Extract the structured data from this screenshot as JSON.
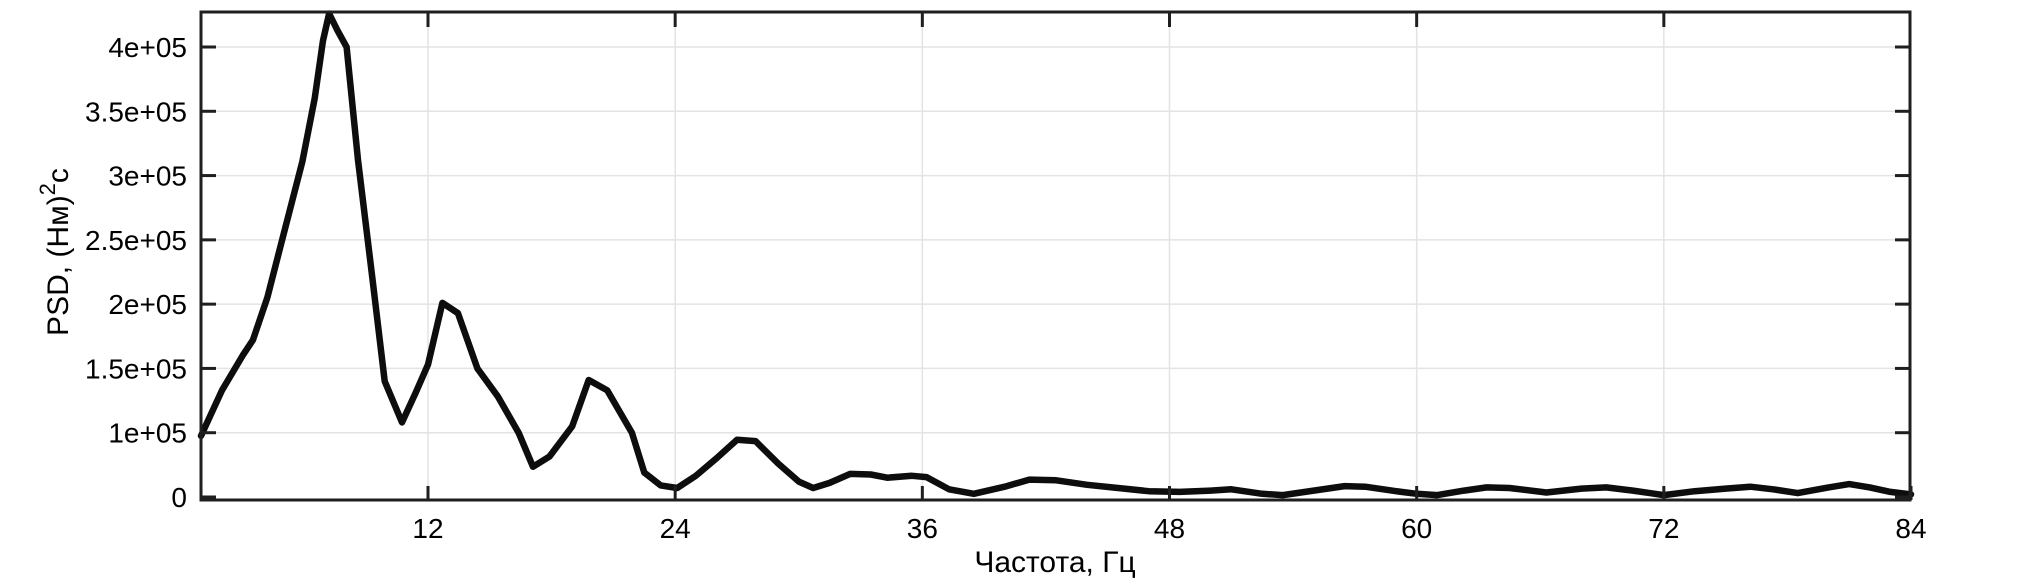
{
  "chart_data": {
    "type": "line",
    "title": "",
    "xlabel": "Частота, Гц",
    "ylabel": "PSD, (Нм)2с",
    "ylabel_parts": {
      "prefix": "PSD, (Нм)",
      "sup": "2",
      "suffix": "с"
    },
    "grid": true,
    "legend": "none",
    "background": "#ffffff",
    "line_color": "#0d0d0d",
    "grid_color": "#e3e3e3",
    "frame_color": "#1f1f1f",
    "text_color": "#000000",
    "xlim": [
      1,
      84
    ],
    "ylim": [
      0,
      427000
    ],
    "y_axis_style": "ticks equally spaced in pixels for values 0, 1e+05 then every 0.5e+05",
    "x_ticks": [
      {
        "value": 12,
        "label": "12"
      },
      {
        "value": 24,
        "label": "24"
      },
      {
        "value": 36,
        "label": "36"
      },
      {
        "value": 48,
        "label": "48"
      },
      {
        "value": 60,
        "label": "60"
      },
      {
        "value": 72,
        "label": "72"
      },
      {
        "value": 84,
        "label": "84"
      }
    ],
    "y_ticks": [
      {
        "value": 0,
        "label": "0"
      },
      {
        "value": 100000,
        "label": "1e+05"
      },
      {
        "value": 150000,
        "label": "1.5e+05"
      },
      {
        "value": 200000,
        "label": "2e+05"
      },
      {
        "value": 250000,
        "label": "2.5e+05"
      },
      {
        "value": 300000,
        "label": "3e+05"
      },
      {
        "value": 350000,
        "label": "3.5e+05"
      },
      {
        "value": 400000,
        "label": "4e+05"
      }
    ],
    "series": [
      {
        "name": "PSD",
        "color": "#0d0d0d",
        "points": [
          [
            0.98,
            95000
          ],
          [
            2.0,
            133000
          ],
          [
            3.0,
            160000
          ],
          [
            3.5,
            172000
          ],
          [
            4.2,
            205000
          ],
          [
            5.0,
            255000
          ],
          [
            5.9,
            311000
          ],
          [
            6.5,
            360000
          ],
          [
            6.9,
            405000
          ],
          [
            7.2,
            426000
          ],
          [
            7.6,
            413000
          ],
          [
            8.05,
            400000
          ],
          [
            8.6,
            312000
          ],
          [
            9.3,
            220000
          ],
          [
            9.9,
            140000
          ],
          [
            10.74,
            108000
          ],
          [
            11.4,
            131000
          ],
          [
            12.0,
            153000
          ],
          [
            12.7,
            201000
          ],
          [
            13.45,
            193000
          ],
          [
            14.4,
            150000
          ],
          [
            15.4,
            128000
          ],
          [
            16.4,
            100000
          ],
          [
            17.1,
            47000
          ],
          [
            17.9,
            63000
          ],
          [
            19.0,
            105000
          ],
          [
            19.8,
            141000
          ],
          [
            20.7,
            133000
          ],
          [
            21.9,
            100000
          ],
          [
            22.5,
            38000
          ],
          [
            23.3,
            18000
          ],
          [
            24.1,
            14000
          ],
          [
            25.0,
            33000
          ],
          [
            26.0,
            60000
          ],
          [
            27.0,
            89000
          ],
          [
            27.9,
            87000
          ],
          [
            29.0,
            52000
          ],
          [
            30.0,
            24000
          ],
          [
            30.7,
            14000
          ],
          [
            31.5,
            22000
          ],
          [
            32.5,
            36000
          ],
          [
            33.5,
            35000
          ],
          [
            34.3,
            30000
          ],
          [
            35.5,
            33000
          ],
          [
            36.2,
            31000
          ],
          [
            37.3,
            12000
          ],
          [
            38.5,
            5000
          ],
          [
            40.0,
            16000
          ],
          [
            41.2,
            27000
          ],
          [
            42.5,
            26000
          ],
          [
            44.0,
            19000
          ],
          [
            45.5,
            14000
          ],
          [
            47.0,
            9000
          ],
          [
            48.5,
            8000
          ],
          [
            50.0,
            10000
          ],
          [
            51.0,
            12000
          ],
          [
            52.5,
            5000
          ],
          [
            53.5,
            3000
          ],
          [
            55.0,
            10000
          ],
          [
            56.5,
            17000
          ],
          [
            57.5,
            16000
          ],
          [
            59.0,
            9000
          ],
          [
            60.0,
            5000
          ],
          [
            61.0,
            3000
          ],
          [
            62.3,
            10000
          ],
          [
            63.4,
            15000
          ],
          [
            64.5,
            14000
          ],
          [
            66.3,
            7000
          ],
          [
            68.0,
            13000
          ],
          [
            69.2,
            15000
          ],
          [
            70.5,
            10000
          ],
          [
            72.0,
            3000
          ],
          [
            73.5,
            9000
          ],
          [
            75.0,
            13000
          ],
          [
            76.2,
            16000
          ],
          [
            77.3,
            12000
          ],
          [
            78.5,
            6000
          ],
          [
            80.0,
            15000
          ],
          [
            81.0,
            20000
          ],
          [
            82.0,
            15000
          ],
          [
            83.0,
            8000
          ],
          [
            84.0,
            4000
          ]
        ]
      }
    ]
  }
}
